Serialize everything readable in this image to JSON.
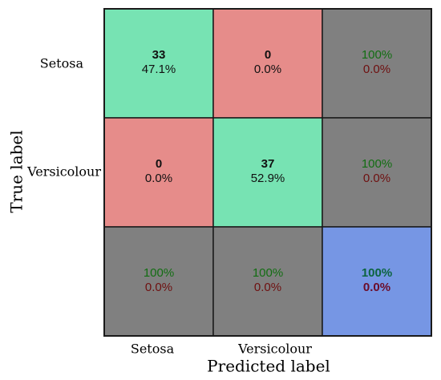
{
  "chart_data": {
    "type": "heatmap",
    "subtype": "confusion-matrix",
    "title": "",
    "xlabel": "Predicted label",
    "ylabel": "True label",
    "x_categories": [
      "Setosa",
      "Versicolour"
    ],
    "y_categories": [
      "Setosa",
      "Versicolour"
    ],
    "counts": [
      [
        33,
        0
      ],
      [
        0,
        37
      ]
    ],
    "percentages": [
      [
        "47.1%",
        "0.0%"
      ],
      [
        "0.0%",
        "52.9%"
      ]
    ],
    "row_summary": [
      {
        "correct": "100%",
        "incorrect": "0.0%"
      },
      {
        "correct": "100%",
        "incorrect": "0.0%"
      }
    ],
    "col_summary": [
      {
        "correct": "100%",
        "incorrect": "0.0%"
      },
      {
        "correct": "100%",
        "incorrect": "0.0%"
      }
    ],
    "overall": {
      "correct": "100%",
      "incorrect": "0.0%"
    },
    "grid": false,
    "legend": "none"
  },
  "colors": {
    "correct_cell": "#77e3b3",
    "incorrect_cell": "#e68c8a",
    "summary_cell": "#808080",
    "overall_cell": "#7696e4",
    "correct_text": "#126d12",
    "incorrect_text": "#6e0f0f",
    "overall_correct_text": "#0c6440",
    "overall_incorrect_text": "#6b0c2a",
    "count_text": "#111111",
    "border": "#1a1a1a"
  }
}
